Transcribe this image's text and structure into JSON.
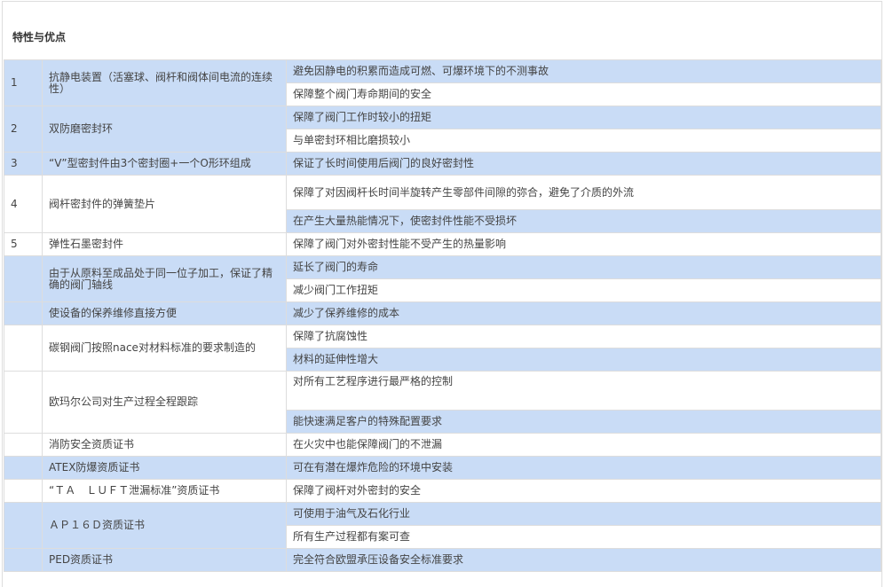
{
  "section_title": "特性与优点",
  "colors": {
    "row_blue": "#c9dcf6",
    "row_white": "#ffffff",
    "border": "#dddddd"
  },
  "rows": [
    {
      "num": "1",
      "feature": "抗静电装置（活塞球、阀杆和阀体间电流的连续性）",
      "bg": "b",
      "benefits": [
        {
          "text": "避免因静电的积累而造成可燃、可爆环境下的不测事故",
          "bg": "b"
        },
        {
          "text": "保障整个阀门寿命期间的安全",
          "bg": "w"
        }
      ]
    },
    {
      "num": "2",
      "feature": "双防磨密封环",
      "bg": "b",
      "benefits": [
        {
          "text": "保障了阀门工作时较小的扭矩",
          "bg": "b"
        },
        {
          "text": "与单密封环相比磨损较小",
          "bg": "w"
        }
      ]
    },
    {
      "num": "3",
      "feature": "“V”型密封件由3个密封圈+一个O形环组成",
      "bg": "b",
      "benefits": [
        {
          "text": "保证了长时间使用后阀门的良好密封性",
          "bg": "b"
        }
      ]
    },
    {
      "num": "4",
      "feature": "阀杆密封件的弹簧垫片",
      "bg": "w",
      "benefits": [
        {
          "text": "保障了对因阀杆长时间半旋转产生零部件间隙的弥合，避免了介质的外流",
          "bg": "w"
        },
        {
          "text": "在产生大量热能情况下，使密封件性能不受损坏",
          "bg": "b"
        }
      ]
    },
    {
      "num": "5",
      "feature": "弹性石墨密封件",
      "bg": "w",
      "benefits": [
        {
          "text": "保障了阀门对外密封性能不受产生的热量影响",
          "bg": "w"
        }
      ]
    },
    {
      "num": "",
      "feature": "由于从原料至成品处于同一位子加工，保证了精确的阀门轴线",
      "bg": "b",
      "benefits": [
        {
          "text": "延长了阀门的寿命",
          "bg": "b"
        },
        {
          "text": "减少阀门工作扭矩",
          "bg": "w"
        }
      ]
    },
    {
      "num": "",
      "feature": "使设备的保养维修直接方便",
      "bg": "b",
      "benefits": [
        {
          "text": "减少了保养维修的成本",
          "bg": "b"
        }
      ]
    },
    {
      "num": "",
      "feature": "碳钢阀门按照nace对材料标准的要求制造的",
      "bg": "w",
      "benefits": [
        {
          "text": "保障了抗腐蚀性",
          "bg": "w"
        },
        {
          "text": "材料的延伸性增大",
          "bg": "b"
        }
      ]
    },
    {
      "num": "",
      "feature": "欧玛尔公司对生产过程全程跟踪",
      "bg": "w",
      "benefits": [
        {
          "text": "对所有工艺程序进行最严格的控制",
          "bg": "w",
          "tall": true
        },
        {
          "text": "能快速满足客户的特殊配置要求",
          "bg": "b"
        }
      ]
    },
    {
      "num": "",
      "feature": "消防安全资质证书",
      "bg": "w",
      "benefits": [
        {
          "text": "在火灾中也能保障阀门的不泄漏",
          "bg": "w"
        }
      ]
    },
    {
      "num": "",
      "feature": "ATEX防爆资质证书",
      "bg": "b",
      "benefits": [
        {
          "text": "可在有潜在爆炸危险的环境中安装",
          "bg": "b"
        }
      ]
    },
    {
      "num": "",
      "feature": "“ＴＡ　ＬＵＦＴ泄漏标准”资质证书",
      "bg": "w",
      "benefits": [
        {
          "text": "保障了阀杆对外密封的安全",
          "bg": "w"
        }
      ]
    },
    {
      "num": "",
      "feature": "ＡＰ１６Ｄ资质证书",
      "bg": "b",
      "benefits": [
        {
          "text": "可使用于油气及石化行业",
          "bg": "b"
        },
        {
          "text": "所有生产过程都有案可查",
          "bg": "w"
        }
      ]
    },
    {
      "num": "",
      "feature": "PED资质证书",
      "bg": "b",
      "benefits": [
        {
          "text": "完全符合欧盟承压设备安全标准要求",
          "bg": "b"
        }
      ]
    }
  ]
}
